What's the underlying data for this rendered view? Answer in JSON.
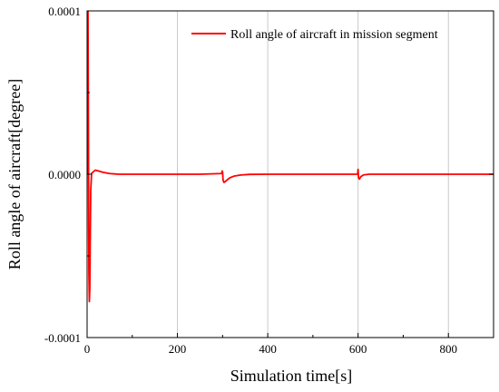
{
  "chart_data": {
    "type": "line",
    "xlabel": "Simulation time[s]",
    "ylabel": "Roll angle of aircraft[degree]",
    "xlim": [
      0,
      900
    ],
    "ylim": [
      -0.0001,
      0.0001
    ],
    "x_ticks": [
      0,
      200,
      400,
      600,
      800
    ],
    "x_tick_labels": [
      "0",
      "200",
      "400",
      "600",
      "800"
    ],
    "y_ticks": [
      -0.0001,
      0.0,
      0.0001
    ],
    "y_tick_labels": [
      "-0.0001",
      "0.0000",
      "0.0001"
    ],
    "grid": {
      "x": true,
      "y": false
    },
    "legend_position": "top-right",
    "colors": {
      "series": "#ff0000",
      "grid": "#c8c8c8",
      "axis": "#000000"
    },
    "series": [
      {
        "name": "Roll angle of aircraft in mission segment",
        "color": "#ff0000",
        "points": [
          [
            0,
            0.0
          ],
          [
            1,
            0.0001
          ],
          [
            2,
            0.0001
          ],
          [
            2.5,
            6e-05
          ],
          [
            3,
            2e-05
          ],
          [
            3.5,
            -3e-05
          ],
          [
            4,
            -6e-05
          ],
          [
            5,
            -7.8e-05
          ],
          [
            6,
            -7e-05
          ],
          [
            7,
            -4e-05
          ],
          [
            8,
            -1e-05
          ],
          [
            10,
            5e-07
          ],
          [
            14,
            1.5e-06
          ],
          [
            18,
            2.5e-06
          ],
          [
            25,
            2e-06
          ],
          [
            35,
            1.2e-06
          ],
          [
            50,
            4e-07
          ],
          [
            70,
            0.0
          ],
          [
            120,
            0.0
          ],
          [
            200,
            0.0
          ],
          [
            250,
            0.0
          ],
          [
            298,
            4e-07
          ],
          [
            299,
            2e-06
          ],
          [
            300,
            1.5e-06
          ],
          [
            301,
            -3.5e-06
          ],
          [
            303,
            -5e-06
          ],
          [
            306,
            -4.5e-06
          ],
          [
            310,
            -3.5e-06
          ],
          [
            316,
            -2.2e-06
          ],
          [
            325,
            -1.2e-06
          ],
          [
            340,
            -5e-07
          ],
          [
            360,
            -1e-07
          ],
          [
            400,
            0.0
          ],
          [
            500,
            0.0
          ],
          [
            599,
            0.0
          ],
          [
            600,
            3e-06
          ],
          [
            601,
            -2.2e-06
          ],
          [
            603,
            -3e-06
          ],
          [
            606,
            -1.5e-06
          ],
          [
            612,
            -4e-07
          ],
          [
            625,
            0.0
          ],
          [
            700,
            0.0
          ],
          [
            800,
            0.0
          ],
          [
            900,
            0.0
          ]
        ]
      }
    ]
  }
}
